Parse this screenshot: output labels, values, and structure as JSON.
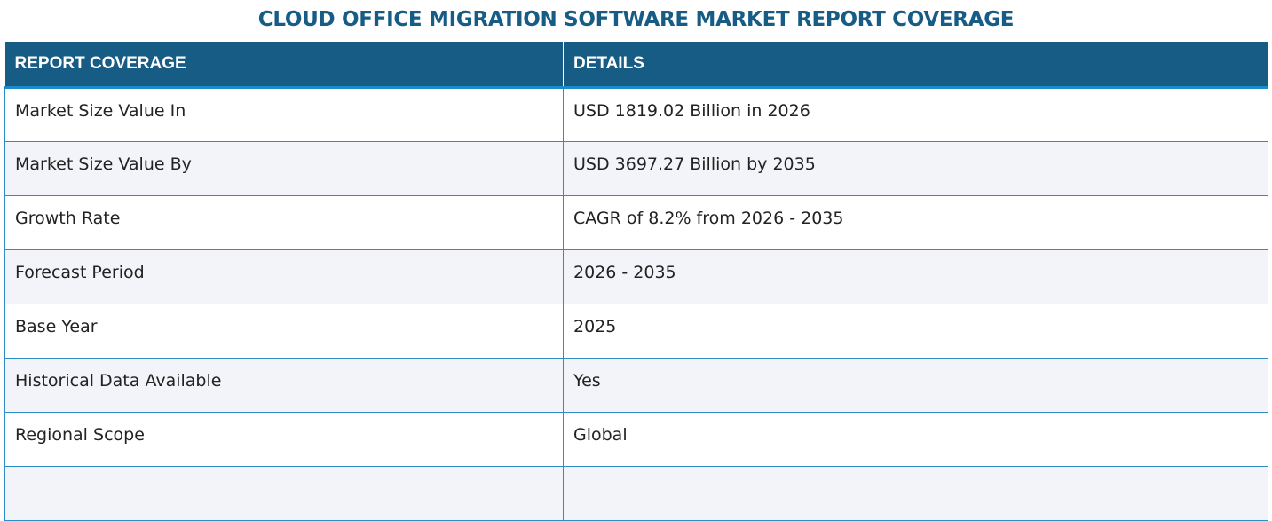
{
  "title": "CLOUD OFFICE MIGRATION SOFTWARE MARKET REPORT COVERAGE",
  "table": {
    "headers": [
      "REPORT COVERAGE",
      "DETAILS"
    ],
    "rows": [
      [
        "Market Size Value In",
        "USD 1819.02 Billion in 2026"
      ],
      [
        "Market Size Value By",
        "USD 3697.27 Billion by 2035"
      ],
      [
        "Growth Rate",
        "CAGR of 8.2% from 2026 - 2035"
      ],
      [
        "Forecast Period",
        "2026 - 2035"
      ],
      [
        "Base Year",
        "2025"
      ],
      [
        "Historical Data Available",
        "Yes"
      ],
      [
        "Regional Scope",
        "Global"
      ],
      [
        "",
        ""
      ]
    ]
  }
}
